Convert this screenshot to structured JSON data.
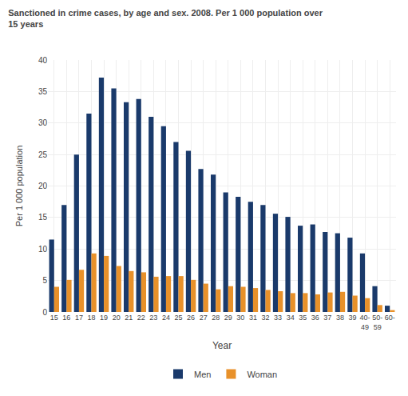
{
  "chart_data": {
    "type": "bar",
    "title": "Sanctioned in crime cases, by age and sex. 2008. Per 1 000 population over\n15 years",
    "xlabel": "Year",
    "ylabel": "Per 1 000 population",
    "categories": [
      "15",
      "16",
      "17",
      "18",
      "19",
      "20",
      "21",
      "22",
      "23",
      "24",
      "25",
      "26",
      "27",
      "28",
      "29",
      "30",
      "31",
      "32",
      "33",
      "34",
      "35",
      "36",
      "37",
      "38",
      "39",
      "40-\n49",
      "50-\n59",
      "60-"
    ],
    "series": [
      {
        "name": "Men",
        "color": "#1a3a6b",
        "values": [
          11.5,
          17.0,
          25.0,
          31.5,
          37.2,
          35.5,
          33.3,
          33.8,
          31.0,
          29.5,
          27.0,
          25.6,
          22.7,
          21.8,
          19.0,
          18.3,
          17.5,
          17.0,
          15.6,
          15.1,
          13.7,
          13.9,
          12.7,
          12.5,
          11.8,
          9.3,
          4.1,
          1.0
        ]
      },
      {
        "name": "Woman",
        "color": "#e8912a",
        "values": [
          4.0,
          5.1,
          6.7,
          9.3,
          8.9,
          7.3,
          6.5,
          6.3,
          5.6,
          5.7,
          5.7,
          5.1,
          4.5,
          3.6,
          4.1,
          4.0,
          3.8,
          3.5,
          3.3,
          3.0,
          3.0,
          2.8,
          3.1,
          3.2,
          2.6,
          2.2,
          1.1,
          0.3
        ]
      }
    ],
    "ylim": [
      0,
      40
    ],
    "yticks": [
      0,
      5,
      10,
      15,
      20,
      25,
      30,
      35,
      40
    ],
    "grid": true,
    "legend": "bottom"
  }
}
